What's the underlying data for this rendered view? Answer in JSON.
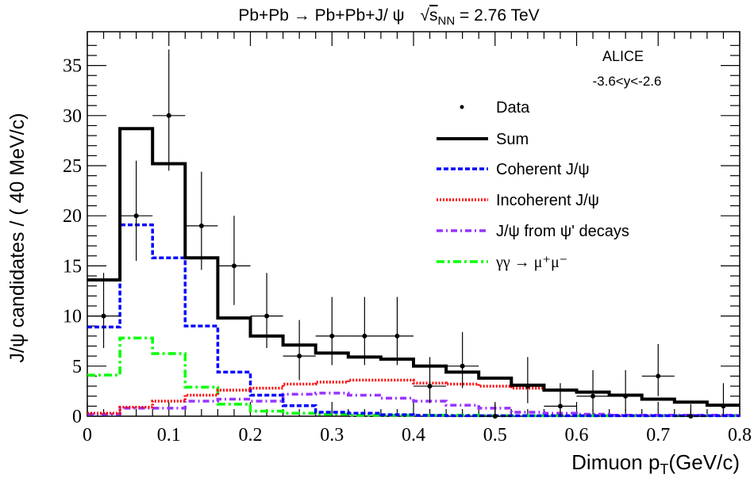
{
  "chart_data": {
    "type": "histogram",
    "title_left": "Pb+Pb → Pb+Pb+J/ ψ",
    "title_sqrt": "√",
    "title_s": "s",
    "title_sub": "NN",
    "title_right": "= 2.76 TeV",
    "xlabel_main": "Dimuon p",
    "xlabel_sub": "T",
    "xlabel_unit": "(GeV/c)",
    "ylabel": "J/ψ candidates / ( 40 MeV/c)",
    "xlim": [
      0,
      0.8
    ],
    "ylim": [
      0,
      37.5
    ],
    "bin_width": 0.04,
    "x_ticks": [
      "0",
      "0.1",
      "0.2",
      "0.3",
      "0.4",
      "0.5",
      "0.6",
      "0.7",
      "0.8"
    ],
    "x_tick_values": [
      0,
      0.1,
      0.2,
      0.3,
      0.4,
      0.5,
      0.6,
      0.7,
      0.8
    ],
    "y_ticks": [
      "0",
      "5",
      "10",
      "15",
      "20",
      "25",
      "30",
      "35"
    ],
    "y_tick_values": [
      0,
      5,
      10,
      15,
      20,
      25,
      30,
      35
    ],
    "annotations": {
      "experiment": "ALICE",
      "rapidity": "-3.6<y<-2.6"
    },
    "data_points": {
      "name": "Data",
      "x": [
        0.02,
        0.06,
        0.1,
        0.14,
        0.18,
        0.22,
        0.26,
        0.3,
        0.34,
        0.38,
        0.42,
        0.46,
        0.5,
        0.54,
        0.58,
        0.62,
        0.66,
        0.7,
        0.74,
        0.78
      ],
      "y": [
        10,
        20,
        30,
        19,
        15,
        10,
        6,
        8,
        8,
        8,
        3,
        5,
        0,
        3,
        1,
        2,
        2,
        4,
        0,
        1
      ],
      "yerr_low": [
        3.2,
        4.5,
        5.5,
        4.4,
        3.9,
        3.2,
        2.4,
        2.9,
        2.9,
        2.9,
        1.7,
        2.2,
        0,
        1.7,
        1,
        1.5,
        1.5,
        2,
        0,
        1
      ],
      "yerr_high": [
        4.3,
        5.5,
        6.6,
        5.4,
        5.0,
        4.3,
        3.6,
        3.9,
        3.9,
        3.9,
        2.9,
        3.4,
        1.2,
        2.9,
        2.3,
        2.6,
        2.6,
        3.2,
        1.2,
        2.3
      ]
    },
    "series": [
      {
        "name": "Sum",
        "color": "#000000",
        "values": [
          13.6,
          28.7,
          25.2,
          15.8,
          9.8,
          8.0,
          7.1,
          6.3,
          5.9,
          5.7,
          5.0,
          4.4,
          3.8,
          3.1,
          2.6,
          2.4,
          2.1,
          1.7,
          1.4,
          1.1
        ]
      },
      {
        "name": "Coherent J/ψ",
        "color": "#0000ff",
        "values": [
          8.9,
          19.1,
          15.8,
          9.0,
          4.4,
          2.1,
          1.05,
          0.4,
          0.3,
          0.15,
          0.08,
          0.05,
          0.05,
          0.05,
          0.05,
          0.05,
          0.05,
          0.05,
          0.05,
          0.05
        ]
      },
      {
        "name": "Incoherent J/ψ",
        "color": "#ff0000",
        "values": [
          0.3,
          0.9,
          1.5,
          2.1,
          2.6,
          2.8,
          3.2,
          3.4,
          3.6,
          3.6,
          3.3,
          3.2,
          3.0,
          2.8,
          2.6,
          2.4,
          2.1,
          1.7,
          1.4,
          1.1
        ]
      },
      {
        "name": "J/ψ from ψ' decays",
        "color": "#9933ff",
        "values": [
          0.2,
          0.8,
          0.8,
          1.5,
          1.7,
          1.5,
          2.2,
          2.3,
          2.1,
          1.8,
          1.5,
          1.1,
          0.8,
          0.4,
          0.3,
          0.2,
          0.1,
          0.1,
          0.1,
          0.1
        ]
      },
      {
        "name": "γγ → μ⁺μ⁻",
        "color": "#00ff00",
        "values": [
          4.1,
          7.8,
          6.25,
          2.9,
          1.2,
          0.5,
          0.3,
          0.2,
          0.1,
          0.1,
          0.1,
          0.1,
          0.05,
          0.05,
          0.05,
          0.05,
          0.05,
          0.05,
          0.05,
          0.05
        ]
      }
    ]
  }
}
